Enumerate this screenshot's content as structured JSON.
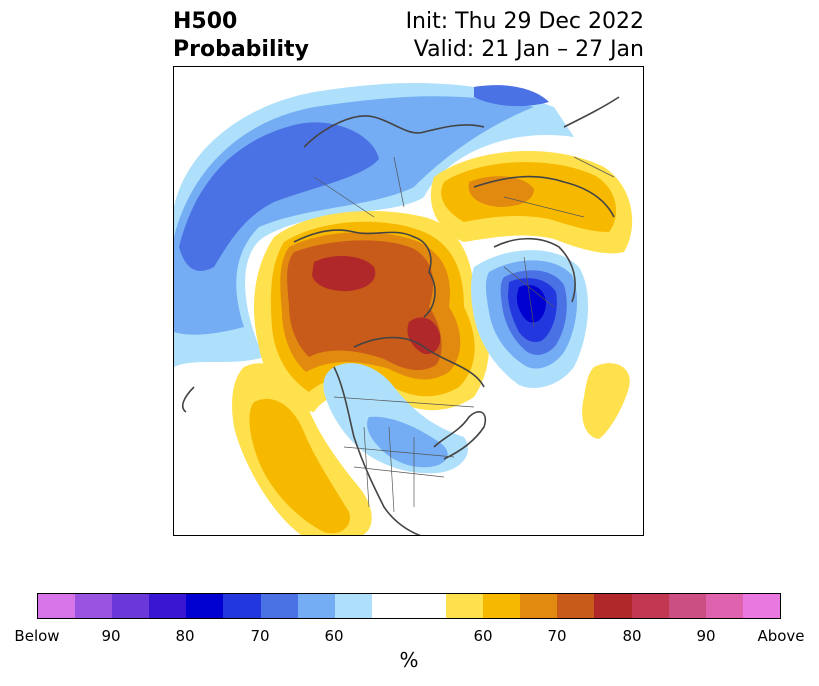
{
  "header": {
    "title_line1": "H500",
    "title_line2": "Probability",
    "init_text": "Init: Thu 29 Dec 2022",
    "valid_text": "Valid: 21 Jan – 27 Jan"
  },
  "colorbar": {
    "colors": [
      "#d674e8",
      "#9a52e0",
      "#6a38d9",
      "#3816d2",
      "#0000d1",
      "#2237dd",
      "#4b72e4",
      "#74adf3",
      "#aee0fc",
      "#ffffff",
      "#ffe14d",
      "#f7b900",
      "#e28a0f",
      "#c85a1a",
      "#b1282a",
      "#c23752",
      "#cc4f83",
      "#de62ad",
      "#ea78e1"
    ],
    "tick_labels": [
      "Below",
      "90",
      "80",
      "70",
      "60",
      "60",
      "70",
      "80",
      "90",
      "Above"
    ],
    "unit_label": "%"
  },
  "legend_colors": {
    "above_60": "#ffe14d",
    "above_65": "#f7b900",
    "above_70": "#e28a0f",
    "above_75": "#c85a1a",
    "above_80": "#b1282a",
    "below_60": "#aee0fc",
    "below_65": "#74adf3",
    "below_70": "#4b72e4",
    "below_75": "#2237dd",
    "below_80": "#0000d1"
  }
}
